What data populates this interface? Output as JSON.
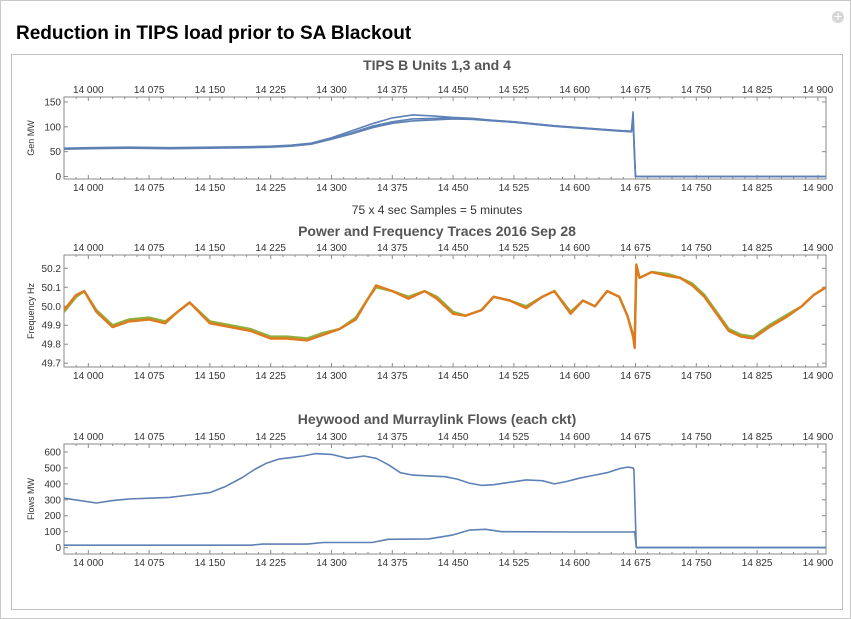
{
  "page": {
    "title": "Reduction in TIPS load prior to SA Blackout",
    "close_icon": "plus-circle-icon",
    "close_glyph": "+"
  },
  "caption": "75 x 4 sec Samples = 5 minutes",
  "colors": {
    "blue": "#5e81b5",
    "orange": "#e07a1f",
    "olive": "#8fb03e",
    "grid": "#d8d8d8",
    "frame": "#8a8a8a"
  },
  "chart_data": [
    {
      "type": "line",
      "title": "TIPS B Units 1,3 and 4",
      "xlabel": "",
      "ylabel": "Gen MW",
      "xlim": [
        13970,
        14910
      ],
      "ylim": [
        -5,
        160
      ],
      "xticks": [
        14000,
        14075,
        14150,
        14225,
        14300,
        14375,
        14450,
        14525,
        14600,
        14675,
        14750,
        14825,
        14900
      ],
      "xtick_labels": [
        "14 000",
        "14 075",
        "14 150",
        "14 225",
        "14 300",
        "14 375",
        "14 450",
        "14 525",
        "14 600",
        "14 675",
        "14 750",
        "14 825",
        "14 900"
      ],
      "yticks": [
        0,
        50,
        100,
        150
      ],
      "grid": false,
      "series": [
        {
          "color": "#5e81b5",
          "x": [
            13970,
            14000,
            14050,
            14100,
            14150,
            14200,
            14225,
            14250,
            14275,
            14300,
            14325,
            14350,
            14375,
            14400,
            14425,
            14450,
            14475,
            14500,
            14525,
            14550,
            14575,
            14600,
            14625,
            14650,
            14670,
            14672,
            14673,
            14674,
            14675,
            14910
          ],
          "y": [
            57,
            58,
            59,
            58,
            59,
            60,
            61,
            63,
            67,
            78,
            92,
            106,
            118,
            124,
            122,
            119,
            117,
            113,
            110,
            106,
            102,
            99,
            96,
            93,
            91,
            130,
            80,
            40,
            0,
            0
          ]
        },
        {
          "color": "#5e81b5",
          "x": [
            13970,
            14000,
            14050,
            14100,
            14150,
            14200,
            14225,
            14250,
            14275,
            14300,
            14325,
            14350,
            14375,
            14400,
            14425,
            14450,
            14475,
            14500,
            14525,
            14550,
            14575,
            14600,
            14625,
            14650,
            14670,
            14672,
            14673,
            14674,
            14675,
            14910
          ],
          "y": [
            56,
            57,
            58,
            57,
            58,
            59,
            60,
            62,
            66,
            76,
            88,
            101,
            110,
            116,
            117,
            118,
            116,
            113,
            110,
            106,
            102,
            99,
            96,
            93,
            91,
            120,
            75,
            35,
            0,
            0
          ]
        },
        {
          "color": "#5e81b5",
          "x": [
            13970,
            14000,
            14050,
            14100,
            14150,
            14200,
            14225,
            14250,
            14275,
            14300,
            14325,
            14350,
            14375,
            14400,
            14425,
            14450,
            14475,
            14500,
            14525,
            14550,
            14575,
            14600,
            14625,
            14650,
            14670,
            14672,
            14673,
            14674,
            14675,
            14910
          ],
          "y": [
            55,
            56,
            57,
            56,
            57,
            58,
            59,
            61,
            65,
            75,
            86,
            98,
            107,
            112,
            114,
            116,
            115,
            112,
            109,
            105,
            101,
            98,
            95,
            92,
            90,
            110,
            70,
            30,
            0,
            0
          ]
        }
      ]
    },
    {
      "type": "line",
      "title": "Power and Frequency Traces 2016 Sep 28",
      "xlabel": "",
      "ylabel": "Frequency Hz",
      "xlim": [
        13970,
        14910
      ],
      "ylim": [
        49.68,
        50.27
      ],
      "xticks": [
        14000,
        14075,
        14150,
        14225,
        14300,
        14375,
        14450,
        14525,
        14600,
        14675,
        14750,
        14825,
        14900
      ],
      "xtick_labels": [
        "14 000",
        "14 075",
        "14 150",
        "14 225",
        "14 300",
        "14 375",
        "14 450",
        "14 525",
        "14 600",
        "14 675",
        "14 750",
        "14 825",
        "14 900"
      ],
      "yticks": [
        49.7,
        49.8,
        49.9,
        50.0,
        50.1,
        50.2
      ],
      "ytick_labels": [
        "49.7",
        "49.8",
        "49.9",
        "50.0",
        "50.1",
        "50.2"
      ],
      "grid": false,
      "series": [
        {
          "color": "#8fb03e",
          "x": [
            13970,
            13985,
            13995,
            14010,
            14030,
            14050,
            14075,
            14095,
            14110,
            14125,
            14150,
            14175,
            14200,
            14225,
            14245,
            14270,
            14290,
            14310,
            14330,
            14345,
            14355,
            14375,
            14395,
            14415,
            14430,
            14450,
            14465,
            14485,
            14500,
            14520,
            14540,
            14560,
            14575,
            14595,
            14610,
            14625,
            14640,
            14655,
            14665,
            14672,
            14674,
            14676,
            14680,
            14695,
            14715,
            14730,
            14745,
            14760,
            14775,
            14790,
            14805,
            14820,
            14840,
            14860,
            14880,
            14895,
            14910
          ],
          "y": [
            49.97,
            50.05,
            50.08,
            49.98,
            49.9,
            49.93,
            49.94,
            49.92,
            49.97,
            50.02,
            49.92,
            49.9,
            49.88,
            49.84,
            49.84,
            49.83,
            49.86,
            49.88,
            49.94,
            50.04,
            50.1,
            50.08,
            50.05,
            50.08,
            50.05,
            49.97,
            49.95,
            49.98,
            50.05,
            50.03,
            50.0,
            50.05,
            50.08,
            49.97,
            50.03,
            50.0,
            50.08,
            50.05,
            49.95,
            49.85,
            49.82,
            50.2,
            50.15,
            50.18,
            50.17,
            50.15,
            50.12,
            50.06,
            49.97,
            49.88,
            49.85,
            49.84,
            49.9,
            49.95,
            50.0,
            50.06,
            50.1
          ]
        },
        {
          "color": "#e07a1f",
          "x": [
            13970,
            13985,
            13995,
            14010,
            14030,
            14050,
            14075,
            14095,
            14110,
            14125,
            14150,
            14175,
            14200,
            14225,
            14245,
            14270,
            14290,
            14310,
            14330,
            14345,
            14355,
            14375,
            14395,
            14415,
            14430,
            14450,
            14465,
            14485,
            14500,
            14520,
            14540,
            14560,
            14575,
            14595,
            14610,
            14625,
            14640,
            14655,
            14665,
            14672,
            14674,
            14676,
            14680,
            14695,
            14715,
            14730,
            14745,
            14760,
            14775,
            14790,
            14805,
            14820,
            14840,
            14860,
            14880,
            14895,
            14910
          ],
          "y": [
            49.98,
            50.06,
            50.08,
            49.97,
            49.89,
            49.92,
            49.93,
            49.91,
            49.97,
            50.02,
            49.91,
            49.89,
            49.87,
            49.83,
            49.83,
            49.82,
            49.85,
            49.88,
            49.93,
            50.04,
            50.11,
            50.08,
            50.04,
            50.08,
            50.04,
            49.96,
            49.95,
            49.98,
            50.05,
            50.03,
            49.99,
            50.05,
            50.08,
            49.96,
            50.03,
            50.0,
            50.08,
            50.05,
            49.95,
            49.84,
            49.78,
            50.22,
            50.15,
            50.18,
            50.16,
            50.15,
            50.11,
            50.05,
            49.96,
            49.87,
            49.84,
            49.83,
            49.89,
            49.94,
            50.0,
            50.06,
            50.1
          ]
        }
      ]
    },
    {
      "type": "line",
      "title": "Heywood and Murraylink Flows (each ckt)",
      "xlabel": "",
      "ylabel": "Flows MW",
      "xlim": [
        13970,
        14910
      ],
      "ylim": [
        -40,
        650
      ],
      "xticks": [
        14000,
        14075,
        14150,
        14225,
        14300,
        14375,
        14450,
        14525,
        14600,
        14675,
        14750,
        14825,
        14900
      ],
      "xtick_labels": [
        "14 000",
        "14 075",
        "14 150",
        "14 225",
        "14 300",
        "14 375",
        "14 450",
        "14 525",
        "14 600",
        "14 675",
        "14 750",
        "14 825",
        "14 900"
      ],
      "yticks": [
        0,
        100,
        200,
        300,
        400,
        500,
        600
      ],
      "grid": false,
      "series": [
        {
          "color": "#5e81b5",
          "x": [
            13970,
            13990,
            14010,
            14030,
            14050,
            14075,
            14100,
            14125,
            14150,
            14170,
            14190,
            14205,
            14220,
            14235,
            14250,
            14265,
            14280,
            14300,
            14320,
            14340,
            14355,
            14370,
            14385,
            14400,
            14420,
            14440,
            14455,
            14470,
            14485,
            14500,
            14520,
            14540,
            14560,
            14575,
            14590,
            14605,
            14620,
            14640,
            14655,
            14665,
            14672,
            14673,
            14676,
            14910
          ],
          "y": [
            310,
            295,
            280,
            295,
            305,
            310,
            315,
            330,
            345,
            385,
            440,
            490,
            530,
            555,
            565,
            575,
            590,
            585,
            560,
            575,
            560,
            520,
            470,
            455,
            450,
            445,
            430,
            405,
            390,
            395,
            410,
            425,
            420,
            400,
            415,
            435,
            450,
            470,
            495,
            505,
            500,
            490,
            0,
            0
          ]
        },
        {
          "color": "#5e81b5",
          "x": [
            13970,
            14050,
            14150,
            14200,
            14215,
            14270,
            14290,
            14350,
            14370,
            14420,
            14450,
            14470,
            14490,
            14510,
            14600,
            14672,
            14674,
            14676,
            14910
          ],
          "y": [
            15,
            15,
            15,
            15,
            22,
            22,
            32,
            32,
            52,
            55,
            80,
            110,
            115,
            100,
            98,
            98,
            100,
            0,
            0
          ]
        }
      ]
    }
  ]
}
